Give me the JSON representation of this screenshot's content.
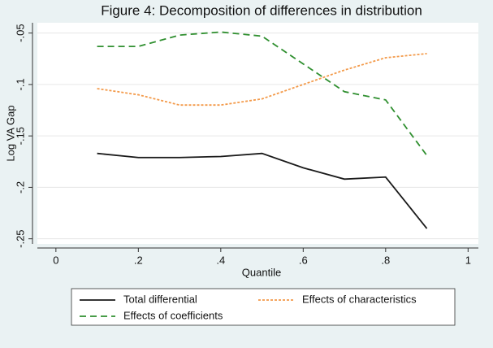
{
  "chart_data": {
    "type": "line",
    "title": "Figure 4: Decomposition of differences in distribution",
    "x_label": "Quantile",
    "y_label": "Log VA Gap",
    "x": [
      0.1,
      0.2,
      0.3,
      0.4,
      0.5,
      0.6,
      0.7,
      0.8,
      0.9
    ],
    "series": [
      {
        "name": "Total differential",
        "color": "#1a1a1a",
        "dash": "solid",
        "values": [
          -0.167,
          -0.171,
          -0.171,
          -0.17,
          -0.167,
          -0.181,
          -0.192,
          -0.19,
          -0.24
        ]
      },
      {
        "name": "Effects of characteristics",
        "color": "#f39a4a",
        "dash": "dot",
        "values": [
          -0.104,
          -0.11,
          -0.12,
          -0.12,
          -0.114,
          -0.1,
          -0.086,
          -0.074,
          -0.07
        ]
      },
      {
        "name": "Effects of coefficients",
        "color": "#2f8f2f",
        "dash": "dash",
        "values": [
          -0.063,
          -0.063,
          -0.052,
          -0.049,
          -0.053,
          -0.08,
          -0.107,
          -0.115,
          -0.169
        ]
      }
    ],
    "xlim": [
      -0.045,
      1.025
    ],
    "ylim": [
      -0.255,
      -0.04
    ],
    "xticks": [
      0,
      {
        "value": 0.2,
        "label": ".2"
      },
      {
        "value": 0.4,
        "label": ".4"
      },
      {
        "value": 0.6,
        "label": ".6"
      },
      {
        "value": 0.8,
        "label": ".8"
      },
      1
    ],
    "yticks": [
      {
        "value": -0.05,
        "label": "-.05"
      },
      {
        "value": -0.1,
        "label": "-.1"
      },
      {
        "value": -0.15,
        "label": "-.15"
      },
      {
        "value": -0.2,
        "label": "-.2"
      },
      {
        "value": -0.25,
        "label": "-.25"
      }
    ],
    "grid": true
  }
}
